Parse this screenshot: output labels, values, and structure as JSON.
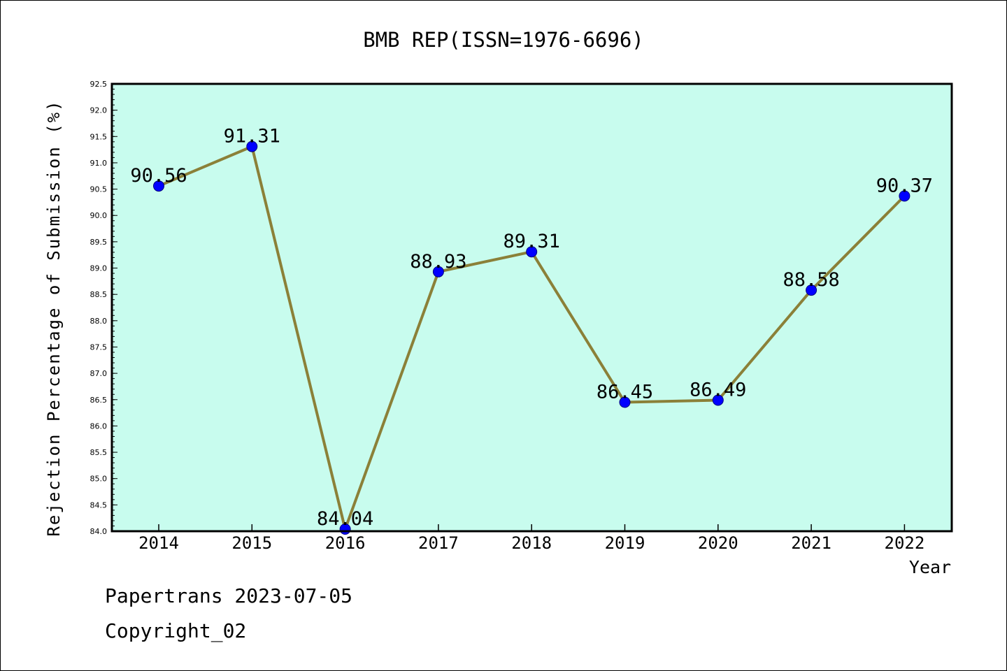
{
  "footer": {
    "line1": "Papertrans 2023-07-05",
    "line2": "Copyright_02"
  },
  "chart_data": {
    "type": "line",
    "title": "BMB REP(ISSN=1976-6696)",
    "xlabel": "Year",
    "ylabel": "Rejection Percentage of Submission (%)",
    "categories": [
      "2014",
      "2015",
      "2016",
      "2017",
      "2018",
      "2019",
      "2020",
      "2021",
      "2022"
    ],
    "values": [
      90.56,
      91.31,
      84.04,
      88.93,
      89.31,
      86.45,
      86.49,
      88.58,
      90.37
    ],
    "data_labels": [
      "90.56",
      "91.31",
      "84.04",
      "88.93",
      "89.31",
      "86.45",
      "86.49",
      "88.58",
      "90.37"
    ],
    "ylim": [
      84.0,
      92.5
    ],
    "yticks": [
      "84.0",
      "84.5",
      "85.0",
      "85.5",
      "86.0",
      "86.5",
      "87.0",
      "87.5",
      "88.0",
      "88.5",
      "89.0",
      "89.5",
      "90.0",
      "90.5",
      "91.0",
      "91.5",
      "92.0",
      "92.5"
    ],
    "grid": false,
    "colors": {
      "plot_background": "#c8fcee",
      "line": "#8b8038",
      "marker_fill": "#0000ff",
      "marker_edge": "#000080"
    }
  }
}
